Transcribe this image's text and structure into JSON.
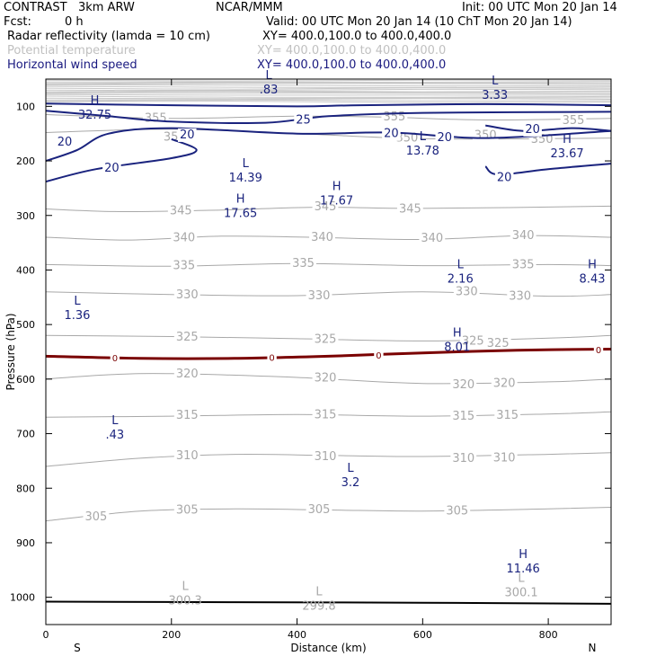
{
  "header": {
    "model": "CONTRAST   3km ARW",
    "org": "NCAR/MMM",
    "init": "Init: 00 UTC Mon 20 Jan 14",
    "fcst_label": "Fcst:",
    "fcst_value": "0 h",
    "valid": "Valid: 00 UTC Mon 20 Jan 14 (10 ChT Mon 20 Jan 14)",
    "field1": "Radar reflectivity (lamda = 10 cm)",
    "field1_xy": "XY= 400.0,100.0 to 400.0,400.0",
    "field2": "Potential temperature",
    "field2_xy": "XY= 400.0,100.0 to 400.0,400.0",
    "field3": "Horizontal wind speed",
    "field3_xy": "XY= 400.0,100.0 to 400.0,400.0"
  },
  "colors": {
    "theta": "#a8a8a8",
    "wind": "#1a237e",
    "freezing": "#7a0000",
    "reflectivity": "#c8c8c8",
    "surface": "#000000"
  },
  "chart_data": {
    "type": "contour",
    "xlabel": "Distance (km)",
    "ylabel": "Pressure (hPa)",
    "xlim": [
      0,
      900
    ],
    "ylim": [
      1050,
      50
    ],
    "xticks": [
      0,
      200,
      400,
      600,
      800
    ],
    "yticks": [
      100,
      200,
      300,
      400,
      500,
      600,
      700,
      800,
      900,
      1000
    ],
    "x_end_labels": {
      "left": "S",
      "right": "N"
    },
    "potential_temperature": [
      {
        "level": 355,
        "points": [
          [
            0,
            115
          ],
          [
            200,
            122
          ],
          [
            400,
            118
          ],
          [
            550,
            120
          ],
          [
            700,
            125
          ],
          [
            900,
            122
          ]
        ],
        "labels": [
          [
            175,
            122
          ],
          [
            555,
            119
          ],
          [
            840,
            126
          ]
        ]
      },
      {
        "level": 350,
        "points": [
          [
            0,
            148
          ],
          [
            200,
            142
          ],
          [
            400,
            150
          ],
          [
            560,
            158
          ],
          [
            700,
            160
          ],
          [
            900,
            158
          ]
        ],
        "labels": [
          [
            205,
            156
          ],
          [
            575,
            158
          ],
          [
            700,
            153
          ],
          [
            790,
            160
          ]
        ]
      },
      {
        "level": 345,
        "points": [
          [
            0,
            288
          ],
          [
            120,
            293
          ],
          [
            280,
            290
          ],
          [
            430,
            285
          ],
          [
            600,
            287
          ],
          [
            900,
            283
          ]
        ],
        "labels": [
          [
            215,
            291
          ],
          [
            445,
            284
          ],
          [
            580,
            288
          ]
        ]
      },
      {
        "level": 340,
        "points": [
          [
            0,
            340
          ],
          [
            130,
            345
          ],
          [
            280,
            338
          ],
          [
            420,
            340
          ],
          [
            600,
            344
          ],
          [
            760,
            337
          ],
          [
            900,
            340
          ]
        ],
        "labels": [
          [
            220,
            341
          ],
          [
            440,
            340
          ],
          [
            615,
            342
          ],
          [
            760,
            337
          ]
        ]
      },
      {
        "level": 335,
        "points": [
          [
            0,
            390
          ],
          [
            200,
            393
          ],
          [
            400,
            388
          ],
          [
            600,
            392
          ],
          [
            800,
            390
          ],
          [
            900,
            392
          ]
        ],
        "labels": [
          [
            220,
            392
          ],
          [
            410,
            388
          ],
          [
            760,
            390
          ]
        ]
      },
      {
        "level": 330,
        "points": [
          [
            0,
            440
          ],
          [
            200,
            445
          ],
          [
            400,
            447
          ],
          [
            600,
            440
          ],
          [
            800,
            448
          ],
          [
            900,
            445
          ]
        ],
        "labels": [
          [
            225,
            445
          ],
          [
            435,
            447
          ],
          [
            670,
            440
          ],
          [
            755,
            448
          ]
        ]
      },
      {
        "level": 325,
        "points": [
          [
            0,
            520
          ],
          [
            200,
            522
          ],
          [
            400,
            526
          ],
          [
            600,
            530
          ],
          [
            800,
            525
          ],
          [
            900,
            520
          ]
        ],
        "labels": [
          [
            225,
            523
          ],
          [
            445,
            527
          ],
          [
            680,
            530
          ],
          [
            720,
            534
          ]
        ]
      },
      {
        "level": 320,
        "points": [
          [
            0,
            600
          ],
          [
            100,
            592
          ],
          [
            200,
            590
          ],
          [
            400,
            597
          ],
          [
            600,
            608
          ],
          [
            800,
            605
          ],
          [
            900,
            600
          ]
        ],
        "labels": [
          [
            225,
            590
          ],
          [
            445,
            598
          ],
          [
            665,
            610
          ],
          [
            730,
            608
          ]
        ]
      },
      {
        "level": 315,
        "points": [
          [
            0,
            670
          ],
          [
            200,
            668
          ],
          [
            400,
            665
          ],
          [
            600,
            668
          ],
          [
            800,
            664
          ],
          [
            900,
            660
          ]
        ],
        "labels": [
          [
            225,
            666
          ],
          [
            445,
            665
          ],
          [
            665,
            668
          ],
          [
            735,
            666
          ]
        ]
      },
      {
        "level": 310,
        "points": [
          [
            0,
            760
          ],
          [
            150,
            745
          ],
          [
            300,
            738
          ],
          [
            450,
            740
          ],
          [
            600,
            742
          ],
          [
            800,
            738
          ],
          [
            900,
            735
          ]
        ],
        "labels": [
          [
            225,
            740
          ],
          [
            445,
            742
          ],
          [
            665,
            745
          ],
          [
            730,
            744
          ]
        ]
      },
      {
        "level": 305,
        "points": [
          [
            0,
            860
          ],
          [
            150,
            842
          ],
          [
            300,
            838
          ],
          [
            450,
            840
          ],
          [
            600,
            842
          ],
          [
            800,
            838
          ],
          [
            900,
            835
          ]
        ],
        "labels": [
          [
            80,
            852
          ],
          [
            225,
            840
          ],
          [
            435,
            839
          ],
          [
            655,
            842
          ]
        ]
      }
    ],
    "wind_speed": [
      {
        "level": 20,
        "points": [
          [
            0,
            200
          ],
          [
            50,
            180
          ],
          [
            100,
            150
          ],
          [
            200,
            140
          ],
          [
            400,
            150
          ],
          [
            550,
            148
          ],
          [
            700,
            158
          ],
          [
            900,
            145
          ]
        ],
        "labels": [
          [
            30,
            165
          ],
          [
            225,
            152
          ],
          [
            550,
            150
          ],
          [
            635,
            157
          ]
        ]
      },
      {
        "level": 20,
        "points": [
          [
            0,
            238
          ],
          [
            80,
            215
          ],
          [
            200,
            195
          ],
          [
            240,
            180
          ],
          [
            200,
            160
          ]
        ],
        "labels": [
          [
            105,
            213
          ]
        ]
      },
      {
        "level": 20,
        "points": [
          [
            700,
            135
          ],
          [
            760,
            145
          ],
          [
            840,
            140
          ],
          [
            900,
            145
          ]
        ],
        "labels": [
          [
            775,
            142
          ]
        ]
      },
      {
        "level": 20,
        "points": [
          [
            700,
            210
          ],
          [
            720,
            225
          ],
          [
            800,
            215
          ],
          [
            900,
            205
          ]
        ],
        "labels": [
          [
            730,
            230
          ]
        ]
      },
      {
        "level": 25,
        "points": [
          [
            0,
            108
          ],
          [
            100,
            118
          ],
          [
            200,
            128
          ],
          [
            350,
            130
          ],
          [
            450,
            118
          ],
          [
            600,
            112
          ],
          [
            900,
            110
          ]
        ],
        "labels": [
          [
            410,
            125
          ]
        ]
      },
      {
        "level": 30,
        "points": [
          [
            0,
            95
          ],
          [
            200,
            98
          ],
          [
            400,
            100
          ],
          [
            500,
            98
          ],
          [
            700,
            96
          ],
          [
            900,
            98
          ]
        ],
        "labels": []
      }
    ],
    "freezing_level": {
      "level": 0,
      "points": [
        [
          0,
          558
        ],
        [
          150,
          562
        ],
        [
          300,
          562
        ],
        [
          450,
          558
        ],
        [
          600,
          552
        ],
        [
          750,
          547
        ],
        [
          900,
          545
        ]
      ],
      "labels": [
        [
          110,
          561
        ],
        [
          360,
          560
        ],
        [
          530,
          556
        ],
        [
          880,
          546
        ]
      ]
    },
    "surface_pressure": [
      [
        0,
        1008
      ],
      [
        300,
        1009
      ],
      [
        600,
        1010
      ],
      [
        900,
        1012
      ]
    ],
    "reflectivity_band": {
      "top": 52,
      "bottom": 92
    },
    "extrema": [
      {
        "type": "L",
        "value": ".83",
        "color": "wind",
        "x": 355,
        "y": 63
      },
      {
        "type": "L",
        "value": "3.33",
        "color": "wind",
        "x": 715,
        "y": 73
      },
      {
        "type": "H",
        "value": "32.75",
        "color": "wind",
        "x": 78,
        "y": 109
      },
      {
        "type": "L",
        "value": "13.78",
        "color": "wind",
        "x": 600,
        "y": 175
      },
      {
        "type": "H",
        "value": "23.67",
        "color": "wind",
        "x": 830,
        "y": 180
      },
      {
        "type": "L",
        "value": "14.39",
        "color": "wind",
        "x": 318,
        "y": 225
      },
      {
        "type": "H",
        "value": "17.67",
        "color": "wind",
        "x": 463,
        "y": 267
      },
      {
        "type": "H",
        "value": "17.65",
        "color": "wind",
        "x": 310,
        "y": 290
      },
      {
        "type": "L",
        "value": "2.16",
        "color": "wind",
        "x": 660,
        "y": 410
      },
      {
        "type": "H",
        "value": "8.43",
        "color": "wind",
        "x": 870,
        "y": 410
      },
      {
        "type": "L",
        "value": "1.36",
        "color": "wind",
        "x": 50,
        "y": 477
      },
      {
        "type": "H",
        "value": "8.01",
        "color": "wind",
        "x": 655,
        "y": 535
      },
      {
        "type": "L",
        "value": ".43",
        "color": "wind",
        "x": 110,
        "y": 696
      },
      {
        "type": "L",
        "value": "3.2",
        "color": "wind",
        "x": 485,
        "y": 783
      },
      {
        "type": "H",
        "value": "11.46",
        "color": "wind",
        "x": 760,
        "y": 941
      },
      {
        "type": "L",
        "value": "300.1",
        "color": "theta",
        "x": 757,
        "y": 985
      },
      {
        "type": "L",
        "value": "300.3",
        "color": "theta",
        "x": 222,
        "y": 1000
      },
      {
        "type": "L",
        "value": "299.8",
        "color": "theta",
        "x": 435,
        "y": 1010
      }
    ]
  }
}
